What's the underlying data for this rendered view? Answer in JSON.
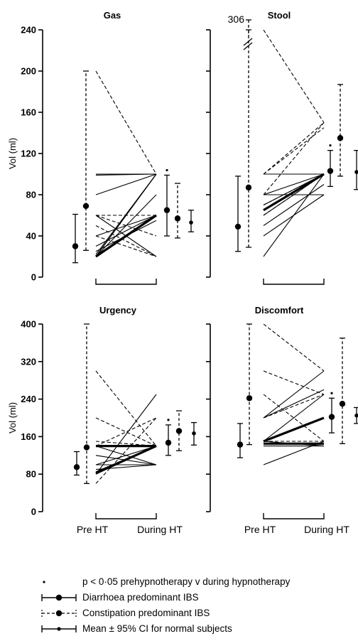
{
  "chart_data": [
    {
      "type": "line",
      "title": "Gas",
      "ylabel": "Vol (ml)",
      "ylim": [
        0,
        240
      ],
      "yticks": [
        "0",
        "40",
        "80",
        "120",
        "160",
        "200",
        "240"
      ],
      "x_categories": [
        "Pre HT",
        "During HT"
      ],
      "solid_lines": [
        [
          20,
          100
        ],
        [
          22,
          100
        ],
        [
          20,
          60
        ],
        [
          20,
          80
        ],
        [
          20,
          100
        ],
        [
          40,
          60
        ],
        [
          60,
          20
        ],
        [
          80,
          100
        ],
        [
          100,
          100
        ],
        [
          99,
          100
        ],
        [
          30,
          60
        ],
        [
          25,
          55
        ]
      ],
      "dashed_lines": [
        [
          200,
          100
        ],
        [
          60,
          60
        ],
        [
          40,
          20
        ],
        [
          20,
          60
        ],
        [
          60,
          40
        ],
        [
          50,
          20
        ]
      ],
      "bold_lines": [
        [
          20,
          60
        ]
      ],
      "summary": {
        "diarrhoea_pre": {
          "mean": 30,
          "low": 14,
          "high": 61
        },
        "constipation_pre": {
          "mean": 69,
          "low": 26,
          "high": 200
        },
        "diarrhoea_during": {
          "mean": 65,
          "low": 40,
          "high": 99
        },
        "constipation_during": {
          "mean": 57,
          "low": 38,
          "high": 91
        },
        "normal": {
          "mean": 53,
          "low": 44,
          "high": 65
        }
      },
      "significant_during_diarrhoea": true,
      "significant_during_constipation": false
    },
    {
      "type": "line",
      "title": "Stool",
      "ylabel": "",
      "ylim": [
        0,
        240
      ],
      "yticks": [
        "0",
        "40",
        "80",
        "120",
        "160",
        "200",
        "240"
      ],
      "x_categories": [
        "Pre HT",
        "During HT"
      ],
      "break_label": "306",
      "solid_lines": [
        [
          60,
          100
        ],
        [
          65,
          100
        ],
        [
          80,
          80
        ],
        [
          100,
          100
        ],
        [
          20,
          100
        ],
        [
          40,
          80
        ],
        [
          50,
          90
        ],
        [
          80,
          100
        ],
        [
          70,
          100
        ]
      ],
      "dashed_lines": [
        [
          244,
          150
        ],
        [
          100,
          150
        ],
        [
          60,
          100
        ],
        [
          80,
          150
        ],
        [
          70,
          100
        ],
        [
          100,
          145
        ]
      ],
      "bold_lines": [
        [
          65,
          100
        ]
      ],
      "summary": {
        "diarrhoea_pre": {
          "mean": 49,
          "low": 25,
          "high": 98
        },
        "constipation_pre": {
          "mean": 87,
          "low": 29,
          "high": 306
        },
        "diarrhoea_during": {
          "mean": 103,
          "low": 88,
          "high": 123
        },
        "constipation_during": {
          "mean": 135,
          "low": 98,
          "high": 187
        },
        "normal": {
          "mean": 102,
          "low": 85,
          "high": 123
        }
      },
      "significant_during_diarrhoea": true,
      "significant_during_constipation": false
    },
    {
      "type": "line",
      "title": "Urgency",
      "ylabel": "Vol (ml)",
      "ylim": [
        0,
        400
      ],
      "yticks": [
        "0",
        "80",
        "160",
        "240",
        "320",
        "400"
      ],
      "x_categories": [
        "Pre HT",
        "During HT"
      ],
      "solid_lines": [
        [
          80,
          250
        ],
        [
          100,
          100
        ],
        [
          140,
          140
        ],
        [
          80,
          140
        ],
        [
          90,
          100
        ],
        [
          100,
          140
        ],
        [
          120,
          100
        ],
        [
          140,
          100
        ],
        [
          85,
          140
        ]
      ],
      "dashed_lines": [
        [
          300,
          140
        ],
        [
          200,
          140
        ],
        [
          60,
          200
        ],
        [
          150,
          140
        ],
        [
          100,
          100
        ],
        [
          140,
          200
        ]
      ],
      "bold_lines": [
        [
          82,
          140
        ],
        [
          140,
          140
        ]
      ],
      "summary": {
        "diarrhoea_pre": {
          "mean": 95,
          "low": 78,
          "high": 128
        },
        "constipation_pre": {
          "mean": 137,
          "low": 60,
          "high": 400
        },
        "diarrhoea_during": {
          "mean": 147,
          "low": 120,
          "high": 185
        },
        "constipation_during": {
          "mean": 172,
          "low": 130,
          "high": 215
        },
        "normal": {
          "mean": 167,
          "low": 142,
          "high": 190
        }
      },
      "significant_during_diarrhoea": true,
      "significant_during_constipation": false
    },
    {
      "type": "line",
      "title": "Discomfort",
      "ylabel": "",
      "ylim": [
        0,
        400
      ],
      "yticks": [
        "0",
        "80",
        "160",
        "240",
        "320",
        "400"
      ],
      "x_categories": [
        "Pre HT",
        "During HT"
      ],
      "solid_lines": [
        [
          200,
          300
        ],
        [
          150,
          250
        ],
        [
          100,
          150
        ],
        [
          140,
          140
        ],
        [
          150,
          140
        ],
        [
          200,
          260
        ],
        [
          145,
          145
        ]
      ],
      "dashed_lines": [
        [
          400,
          300
        ],
        [
          300,
          250
        ],
        [
          250,
          150
        ],
        [
          150,
          150
        ],
        [
          200,
          250
        ]
      ],
      "bold_lines": [
        [
          150,
          200
        ],
        [
          145,
          145
        ]
      ],
      "summary": {
        "diarrhoea_pre": {
          "mean": 143,
          "low": 115,
          "high": 188
        },
        "constipation_pre": {
          "mean": 242,
          "low": 143,
          "high": 400
        },
        "diarrhoea_during": {
          "mean": 202,
          "low": 168,
          "high": 242
        },
        "constipation_during": {
          "mean": 230,
          "low": 145,
          "high": 370
        },
        "normal": {
          "mean": 205,
          "low": 188,
          "high": 222
        }
      },
      "significant_during_diarrhoea": true,
      "significant_during_constipation": false
    }
  ],
  "x_labels": {
    "pre": "Pre HT",
    "during": "During HT"
  },
  "legend": {
    "significance": "p < 0·05 prehypnotherapy v during hypnotherapy",
    "diarrhoea": "Diarrhoea predominant IBS",
    "constipation": "Constipation predominant IBS",
    "normal": "Mean ± 95% CI for normal subjects"
  }
}
